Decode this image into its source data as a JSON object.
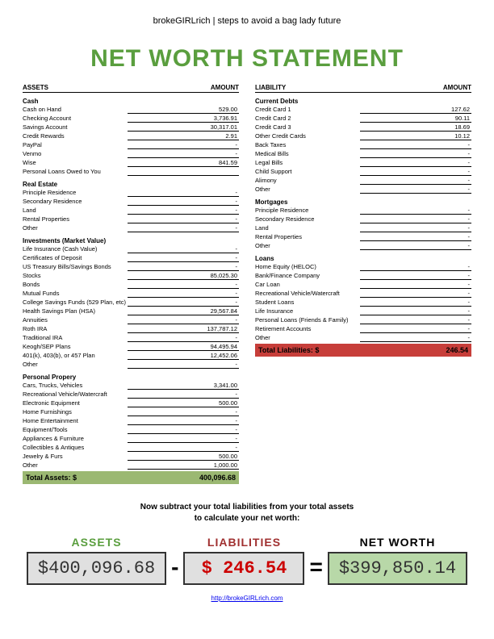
{
  "header": "brokeGIRLrich | steps to avoid a bag lady future",
  "title": "NET WORTH STATEMENT",
  "assets_col_label": "ASSETS",
  "liab_col_label": "LIABILITY",
  "amount_label": "AMOUNT",
  "assets": {
    "cash": {
      "label": "Cash",
      "items": [
        {
          "label": "Cash on Hand",
          "value": "529.00"
        },
        {
          "label": "Checking Account",
          "value": "3,736.91"
        },
        {
          "label": "Savings Account",
          "value": "30,317.01"
        },
        {
          "label": "Credit Rewards",
          "value": "2.91"
        },
        {
          "label": "PayPal",
          "value": "-"
        },
        {
          "label": "Venmo",
          "value": "-"
        },
        {
          "label": "Wise",
          "value": "841.59"
        },
        {
          "label": "Personal Loans Owed to You",
          "value": ""
        }
      ]
    },
    "real_estate": {
      "label": "Real Estate",
      "items": [
        {
          "label": "Principle Residence",
          "value": "-"
        },
        {
          "label": "Secondary Residence",
          "value": "-"
        },
        {
          "label": "Land",
          "value": "-"
        },
        {
          "label": "Rental Properties",
          "value": "-"
        },
        {
          "label": "Other",
          "value": "-"
        }
      ]
    },
    "investments": {
      "label": "Investments (Market Value)",
      "items": [
        {
          "label": "Life Insurance (Cash Value)",
          "value": "-"
        },
        {
          "label": "Certificates of Deposit",
          "value": "-"
        },
        {
          "label": "US Treasury Bills/Savings Bonds",
          "value": "-"
        },
        {
          "label": "Stocks",
          "value": "85,025.30"
        },
        {
          "label": "Bonds",
          "value": "-"
        },
        {
          "label": "Mutual Funds",
          "value": "-"
        },
        {
          "label": "College Savings Funds (529 Plan, etc)",
          "value": "-"
        },
        {
          "label": "Health Savings Plan (HSA)",
          "value": "29,567.84"
        },
        {
          "label": "Annuities",
          "value": "-"
        },
        {
          "label": "Roth IRA",
          "value": "137,787.12"
        },
        {
          "label": "Traditional IRA",
          "value": "-"
        },
        {
          "label": "Keogh/SEP Plans",
          "value": "94,495.94"
        },
        {
          "label": "401(k), 403(b), or 457 Plan",
          "value": "12,452.06"
        },
        {
          "label": "Other",
          "value": "-"
        }
      ]
    },
    "personal": {
      "label": "Personal Propery",
      "items": [
        {
          "label": "Cars, Trucks, Vehicles",
          "value": "3,341.00"
        },
        {
          "label": "Recreational Vehicle/Watercraft",
          "value": "-"
        },
        {
          "label": "Electronic Equipment",
          "value": "500.00"
        },
        {
          "label": "Home Furnishings",
          "value": "-"
        },
        {
          "label": "Home Entertainment",
          "value": "-"
        },
        {
          "label": "Equipment/Tools",
          "value": "-"
        },
        {
          "label": "Appliances & Furniture",
          "value": "-"
        },
        {
          "label": "Collectibles & Antiques",
          "value": "-"
        },
        {
          "label": "Jewelry & Furs",
          "value": "500.00"
        },
        {
          "label": "Other",
          "value": "1,000.00"
        }
      ]
    },
    "total_label": "Total Assets: $",
    "total_value": "400,096.68"
  },
  "liabilities": {
    "current": {
      "label": "Current Debts",
      "items": [
        {
          "label": "Credit Card 1",
          "value": "127.62"
        },
        {
          "label": "Credit Card 2",
          "value": "90.11"
        },
        {
          "label": "Credit Card 3",
          "value": "18.69"
        },
        {
          "label": "Other Credit Cards",
          "value": "10.12"
        },
        {
          "label": "Back Taxes",
          "value": "-"
        },
        {
          "label": "Medical Bills",
          "value": "-"
        },
        {
          "label": "Legal Bills",
          "value": "-"
        },
        {
          "label": "Child Support",
          "value": "-"
        },
        {
          "label": "Alimony",
          "value": "-"
        },
        {
          "label": "Other",
          "value": "-"
        }
      ]
    },
    "mortgages": {
      "label": "Mortgages",
      "items": [
        {
          "label": "Principle Residence",
          "value": "-"
        },
        {
          "label": "Secondary Residence",
          "value": "-"
        },
        {
          "label": "Land",
          "value": "-"
        },
        {
          "label": "Rental Properties",
          "value": "-"
        },
        {
          "label": "Other",
          "value": "-"
        }
      ]
    },
    "loans": {
      "label": "Loans",
      "items": [
        {
          "label": "Home Equity (HELOC)",
          "value": "-"
        },
        {
          "label": "Bank/Finance Company",
          "value": "-"
        },
        {
          "label": "Car Loan",
          "value": "-"
        },
        {
          "label": "Recreational Vehicle/Watercraft",
          "value": "-"
        },
        {
          "label": "Student Loans",
          "value": "-"
        },
        {
          "label": "Life Insurance",
          "value": "-"
        },
        {
          "label": "Personal Loans (Friends & Family)",
          "value": "-"
        },
        {
          "label": "Retirement Accounts",
          "value": "-"
        },
        {
          "label": "Other",
          "value": "-"
        }
      ]
    },
    "total_label": "Total Liabilities: $",
    "total_value": "246.54"
  },
  "instruction_line1": "Now subtract your total liabilities from your total assets",
  "instruction_line2": "to calculate your net worth:",
  "calc": {
    "assets_label": "ASSETS",
    "assets_value": "$400,096.68",
    "liab_label": "LIABILITIES",
    "liab_value": "$   246.54",
    "net_label": "NET WORTH",
    "net_value": "$399,850.14",
    "minus": "-",
    "equals": "="
  },
  "footer_url": "http://brokeGIRLrich.com"
}
